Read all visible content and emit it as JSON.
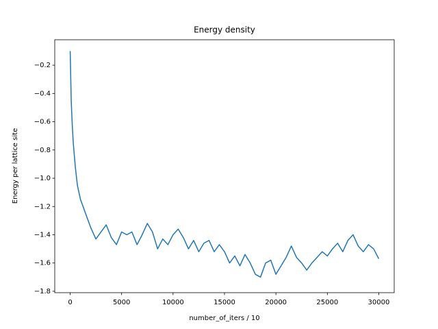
{
  "chart_data": {
    "type": "line",
    "title": "Energy density",
    "xlabel": "number_of_iters / 10",
    "ylabel": "Energy per lattice site",
    "color": "#1f77b4",
    "grid": false,
    "xlim": [
      -1500,
      31500
    ],
    "ylim": [
      -1.81,
      -0.02
    ],
    "xticks": [
      0,
      5000,
      10000,
      15000,
      20000,
      25000,
      30000
    ],
    "yticks": [
      {
        "value": -0.2,
        "label": "−0.2"
      },
      {
        "value": -0.4,
        "label": "−0.4"
      },
      {
        "value": -0.6,
        "label": "−0.6"
      },
      {
        "value": -0.8,
        "label": "−0.8"
      },
      {
        "value": -1.0,
        "label": "−1.0"
      },
      {
        "value": -1.2,
        "label": "−1.2"
      },
      {
        "value": -1.4,
        "label": "−1.4"
      },
      {
        "value": -1.6,
        "label": "−1.6"
      },
      {
        "value": -1.8,
        "label": "−1.8"
      }
    ],
    "x": [
      0,
      100,
      200,
      300,
      500,
      700,
      1000,
      1500,
      2000,
      2500,
      3000,
      3500,
      4000,
      4500,
      5000,
      5500,
      6000,
      6500,
      7000,
      7500,
      8000,
      8500,
      9000,
      9500,
      10000,
      10500,
      11000,
      11500,
      12000,
      12500,
      13000,
      13500,
      14000,
      14500,
      15000,
      15500,
      16000,
      16500,
      17000,
      17500,
      18000,
      18500,
      19000,
      19500,
      20000,
      20500,
      21000,
      21500,
      22000,
      22500,
      23000,
      23500,
      24000,
      24500,
      25000,
      25500,
      26000,
      26500,
      27000,
      27500,
      28000,
      28500,
      29000,
      29500,
      30000
    ],
    "values": [
      -0.1,
      -0.45,
      -0.62,
      -0.75,
      -0.92,
      -1.05,
      -1.15,
      -1.25,
      -1.35,
      -1.43,
      -1.38,
      -1.33,
      -1.42,
      -1.47,
      -1.38,
      -1.4,
      -1.38,
      -1.47,
      -1.4,
      -1.32,
      -1.38,
      -1.5,
      -1.43,
      -1.47,
      -1.4,
      -1.36,
      -1.42,
      -1.5,
      -1.44,
      -1.52,
      -1.46,
      -1.44,
      -1.52,
      -1.47,
      -1.52,
      -1.6,
      -1.55,
      -1.62,
      -1.54,
      -1.6,
      -1.68,
      -1.7,
      -1.6,
      -1.58,
      -1.68,
      -1.62,
      -1.56,
      -1.48,
      -1.56,
      -1.6,
      -1.65,
      -1.6,
      -1.56,
      -1.52,
      -1.55,
      -1.5,
      -1.46,
      -1.52,
      -1.44,
      -1.4,
      -1.48,
      -1.52,
      -1.47,
      -1.5,
      -1.57
    ]
  }
}
